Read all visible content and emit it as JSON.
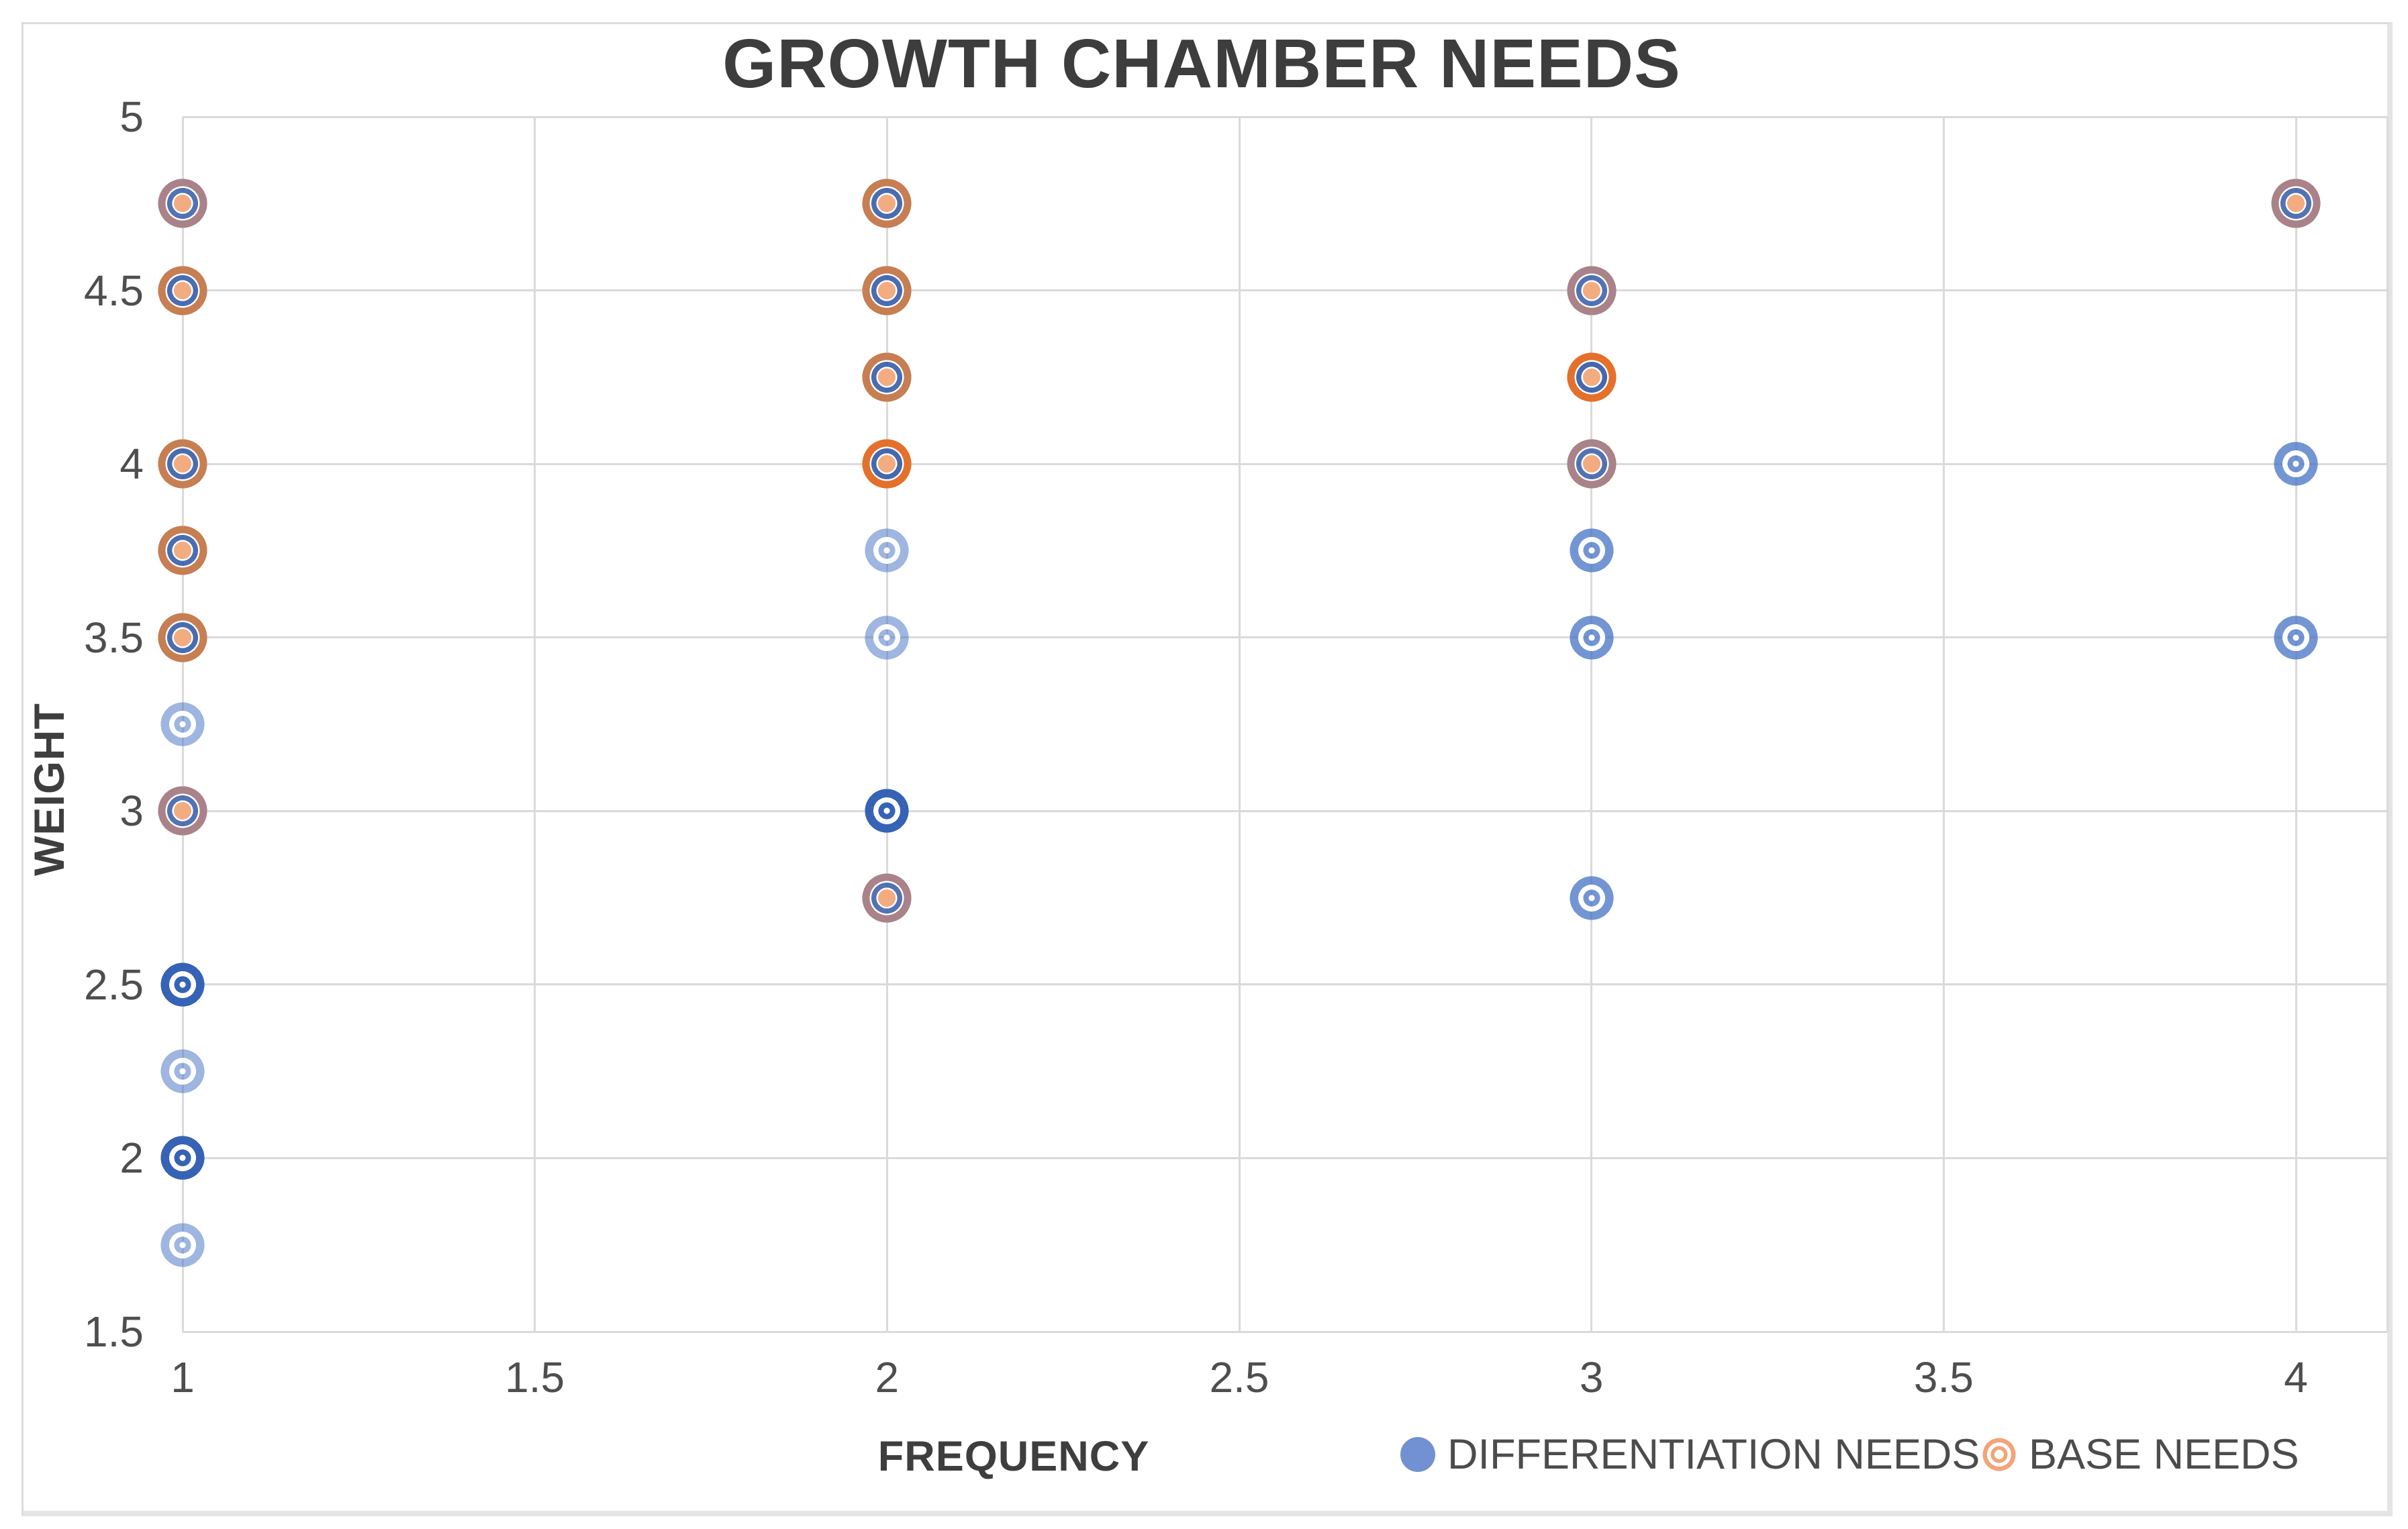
{
  "chart_data": {
    "type": "scatter",
    "title": "GROWTH CHAMBER NEEDS",
    "xlabel": "FREQUENCY",
    "ylabel": "WEIGHT",
    "xlim": [
      1,
      4
    ],
    "ylim": [
      1.5,
      5
    ],
    "xticks": [
      1,
      1.5,
      2,
      2.5,
      3,
      3.5,
      4
    ],
    "yticks": [
      5,
      4.5,
      4,
      3.5,
      3,
      2.5,
      2,
      1.5
    ],
    "grid": true,
    "legend_position": "bottom-right",
    "series": [
      {
        "name": "DIFFERENTIATION NEEDS",
        "color": "#4472c4",
        "marker": "ringed-circle",
        "points": [
          [
            1,
            4.75
          ],
          [
            1,
            4.5
          ],
          [
            1,
            4
          ],
          [
            1,
            3.75
          ],
          [
            1,
            3.5
          ],
          [
            1,
            3.25
          ],
          [
            1,
            3
          ],
          [
            1,
            2.5
          ],
          [
            1,
            2.25
          ],
          [
            1,
            2
          ],
          [
            1,
            1.75
          ],
          [
            2,
            4.75
          ],
          [
            2,
            4.5
          ],
          [
            2,
            4.25
          ],
          [
            2,
            4
          ],
          [
            2,
            3.75
          ],
          [
            2,
            3.5
          ],
          [
            2,
            3
          ],
          [
            2,
            2.75
          ],
          [
            3,
            4.5
          ],
          [
            3,
            4.25
          ],
          [
            3,
            4
          ],
          [
            3,
            3.75
          ],
          [
            3,
            3.5
          ],
          [
            3,
            2.75
          ],
          [
            4,
            4.75
          ],
          [
            4,
            4
          ],
          [
            4,
            3.5
          ]
        ]
      },
      {
        "name": "BASE NEEDS",
        "color": "#ed7d31",
        "marker": "double-ring",
        "points": [
          [
            1,
            4.75
          ],
          [
            1,
            4.5
          ],
          [
            1,
            4
          ],
          [
            1,
            3.75
          ],
          [
            1,
            3.5
          ],
          [
            1,
            3
          ],
          [
            2,
            4.75
          ],
          [
            2,
            4.5
          ],
          [
            2,
            4.25
          ],
          [
            2,
            4
          ],
          [
            2,
            2.75
          ],
          [
            3,
            4.5
          ],
          [
            3,
            4.25
          ],
          [
            3,
            4
          ],
          [
            4,
            4.75
          ]
        ]
      }
    ],
    "blue_point_shade": {
      "1,3.25": "light",
      "1,2.5": "dark",
      "1,2.25": "light",
      "1,2": "dark",
      "1,1.75": "light",
      "2,3.75": "light",
      "2,3.5": "light",
      "2,3": "dark",
      "3,3.75": "medium",
      "3,3.5": "medium",
      "3,2.75": "medium",
      "4,4": "medium",
      "4,3.5": "medium"
    },
    "overlap_blend": {
      "1,4.75": "mauve",
      "1,4.5": "brown",
      "1,4": "brown",
      "1,3.75": "brown",
      "1,3.5": "brown",
      "1,3": "mauve",
      "2,4.75": "brown",
      "2,4.5": "brown",
      "2,4.25": "brown",
      "2,4": "vivid",
      "2,2.75": "mauve",
      "3,4.5": "mauve",
      "3,4.25": "vivid",
      "3,4": "mauve",
      "4,4.75": "mauve"
    }
  }
}
